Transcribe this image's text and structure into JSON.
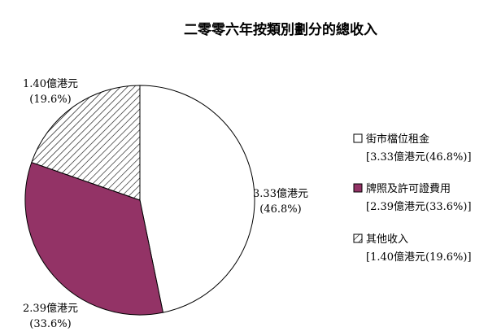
{
  "chart_data": {
    "type": "pie",
    "title": "二零零六年按類別劃分的總收入",
    "unit": "億港元",
    "categories": [
      "街市檔位租金",
      "牌照及許可證費用",
      "其他收入"
    ],
    "values": [
      3.33,
      2.39,
      1.4
    ],
    "percents": [
      "46.8%",
      "33.6%",
      "19.6%"
    ],
    "slice_labels": [
      {
        "amount": "3.33億港元",
        "percent": "(46.8%)"
      },
      {
        "amount": "2.39億港元",
        "percent": "(33.6%)"
      },
      {
        "amount": "1.40億港元",
        "percent": "(19.6%)"
      }
    ],
    "legend": [
      {
        "name": "街市檔位租金",
        "detail": "[3.33億港元(46.8%)]",
        "fill": "white"
      },
      {
        "name": "牌照及許可證費用",
        "detail": "[2.39億港元(33.6%)]",
        "fill": "#933366"
      },
      {
        "name": "其他收入",
        "detail": "[1.40億港元(19.6%)]",
        "fill": "hatch"
      }
    ],
    "colors": {
      "slice_1": "#ffffff",
      "slice_2": "#933366",
      "slice_3_hatch": "#000000",
      "outline": "#000000"
    },
    "start_angle": "12 o'clock",
    "direction": "clockwise",
    "legend_position": "right"
  }
}
